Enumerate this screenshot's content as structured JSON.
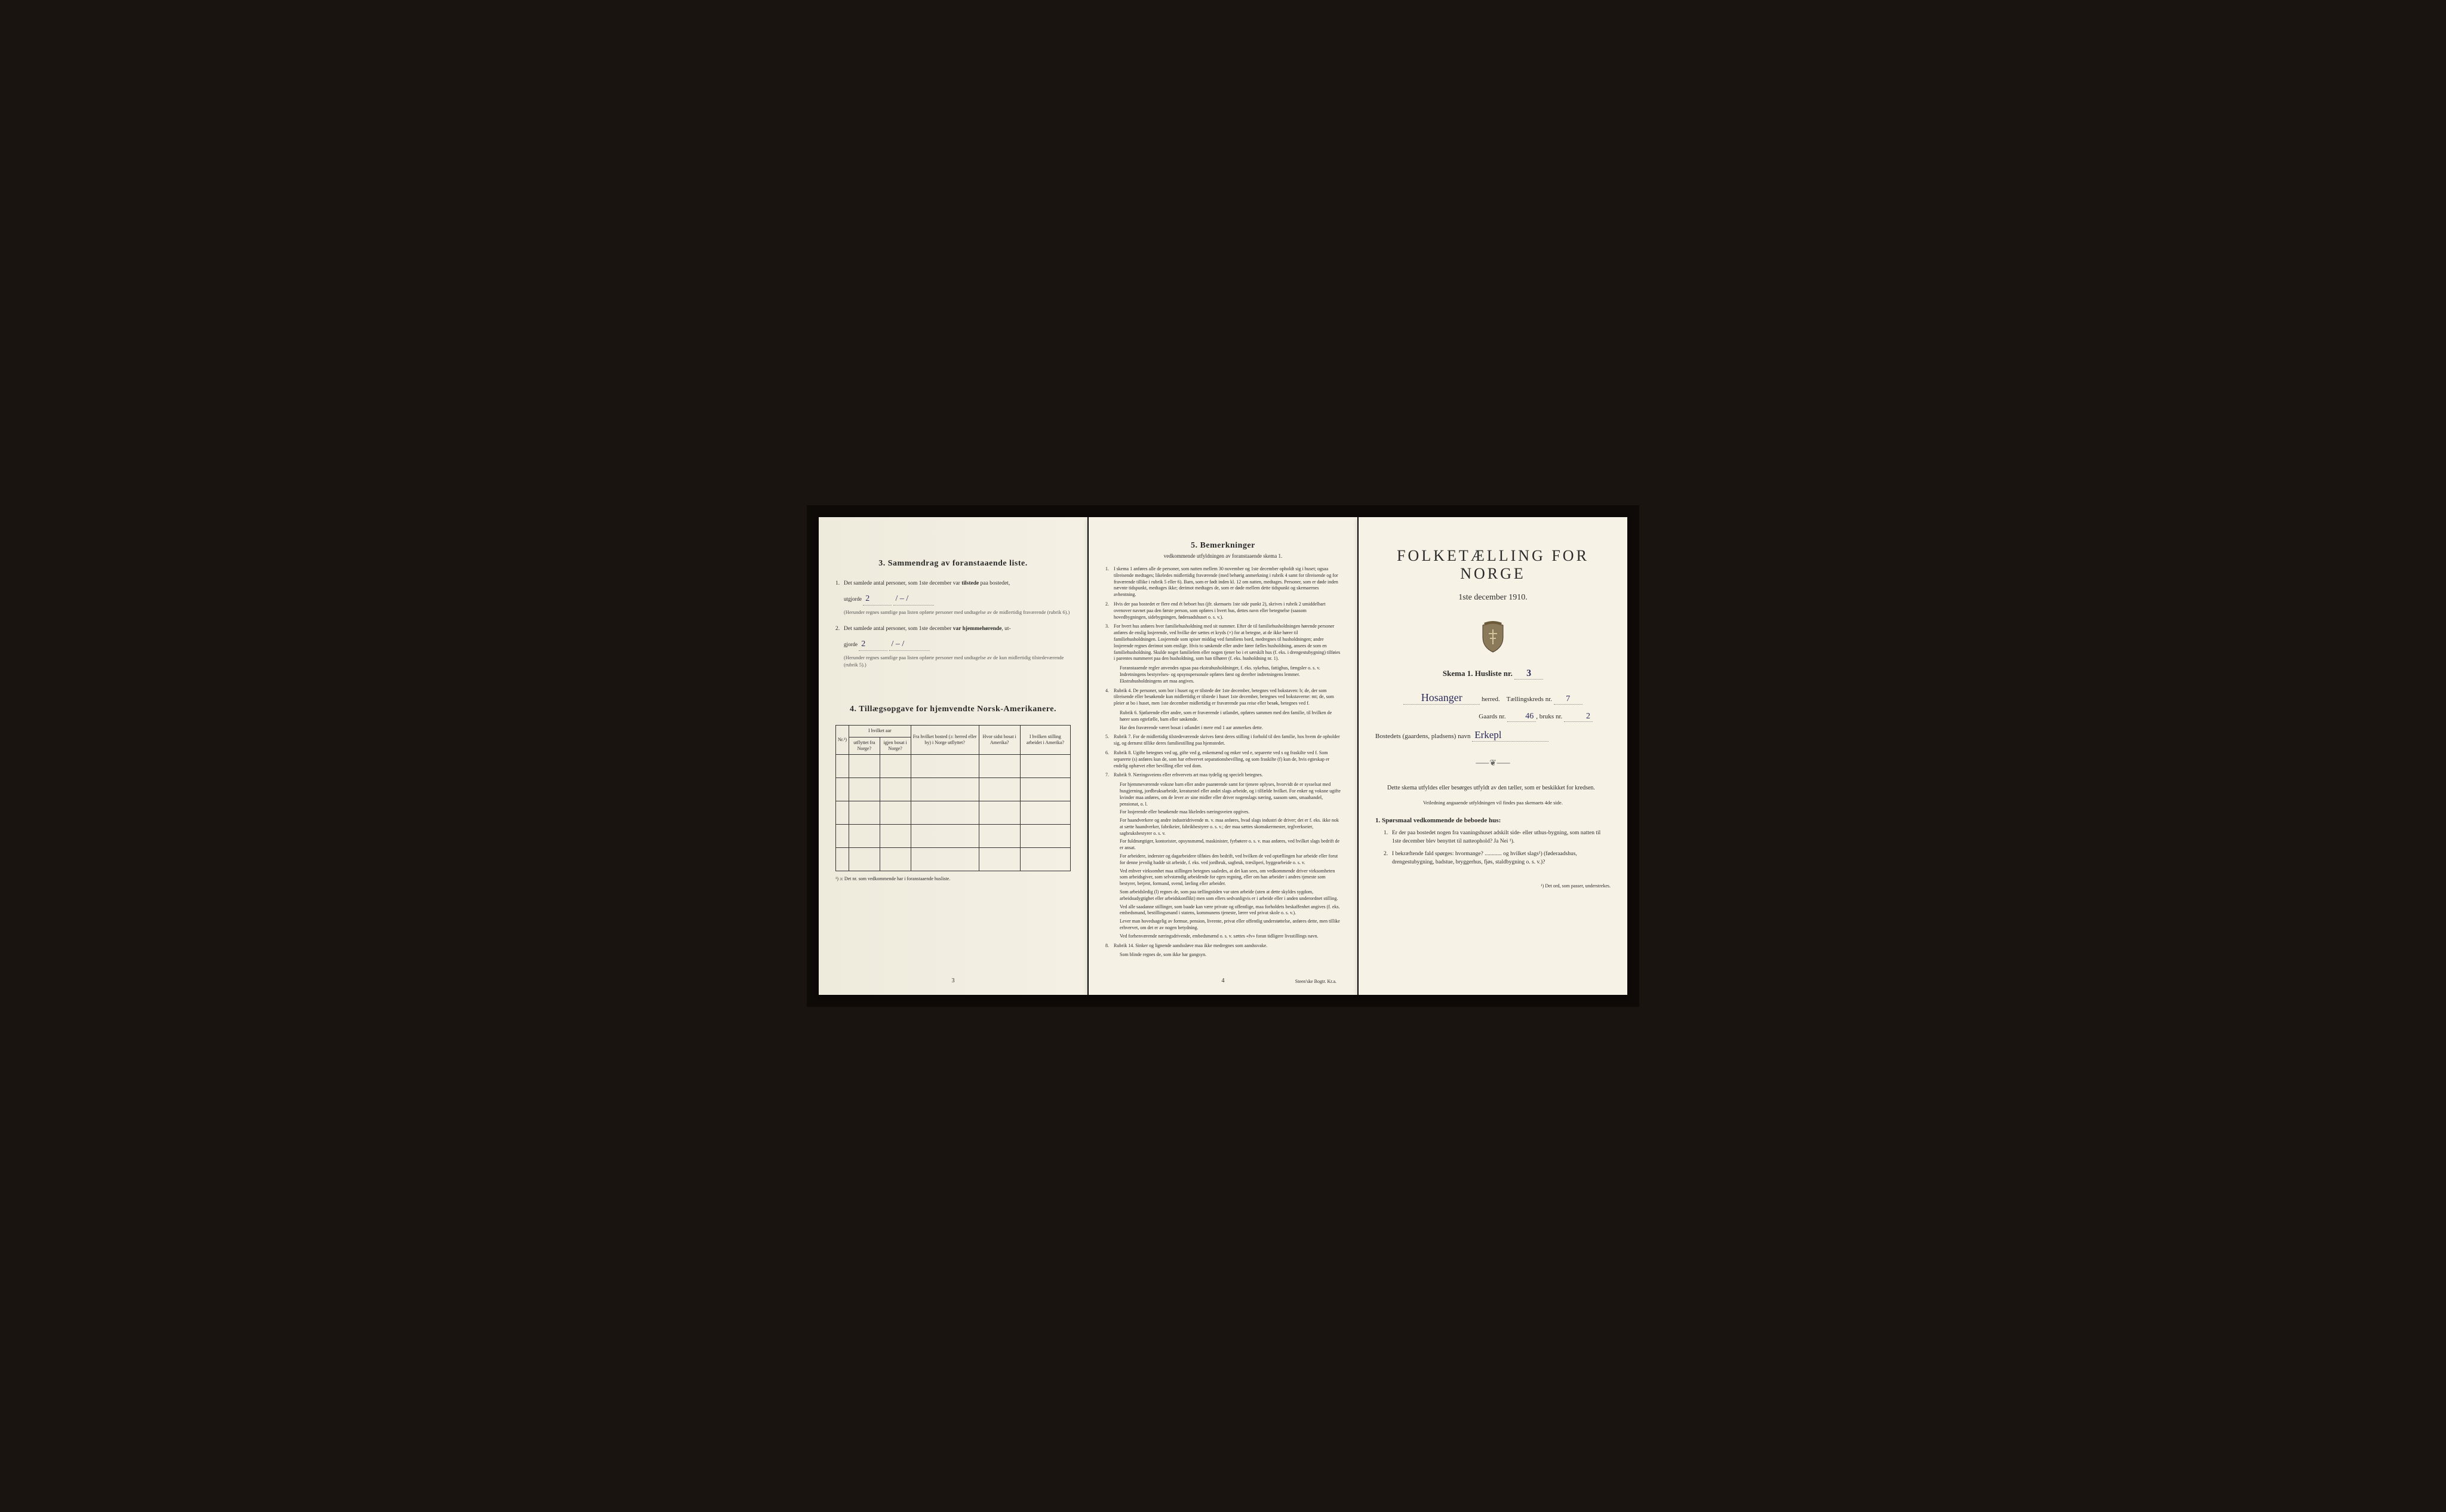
{
  "page1": {
    "section3_heading": "3.  Sammendrag av foranstaaende liste.",
    "item1_prefix": "1.",
    "item1_text_a": "Det samlede antal personer, som 1ste december var ",
    "item1_bold": "tilstede",
    "item1_text_b": " paa bostedet,",
    "item1_line2a": "utgjorde ",
    "hw1": "2",
    "hw1b": "/ – /",
    "item1_paren": "(Herunder regnes samtlige paa listen opførte personer med undtagelse av de midlertidig fraværende (rubrik 6).)",
    "item2_prefix": "2.",
    "item2_text_a": "Det samlede antal personer, som 1ste december ",
    "item2_bold": "var hjemmehørende",
    "item2_text_b": ", ut-",
    "item2_line2a": "gjorde ",
    "hw2": "2",
    "hw2b": "/ – /",
    "item2_paren": "(Herunder regnes samtlige paa listen opførte personer med undtagelse av de kun midlertidig tilstedeværende (rubrik 5).)",
    "section4_heading": "4.  Tillægsopgave for hjemvendte Norsk-Amerikanere.",
    "table_headers": {
      "nr": "Nr.¹)",
      "hvilket_aar": "I hvilket aar",
      "utflyttet": "utflyttet fra Norge?",
      "igjen": "igjen bosat i Norge?",
      "fra_bosted": "Fra hvilket bosted (ɔ: herred eller by) i Norge utflyttet?",
      "hvor_sidst": "Hvor sidst bosat i Amerika?",
      "hvilken_stilling": "I hvilken stilling arbeidet i Amerika?"
    },
    "footnote4": "¹) ɔ: Det nr. som vedkommende har i foranstaaende husliste.",
    "page_num": "3"
  },
  "page2": {
    "heading": "5.  Bemerkninger",
    "subhead": "vedkommende utfyldningen av foranstaaende skema 1.",
    "items": [
      {
        "n": "1.",
        "t": "I skema 1 anføres alle de personer, som natten mellem 30 november og 1ste december opholdt sig i huset; ogsaa tilreisende medtages; likeledes midlertidig fraværende (med behørig anmerkning i rubrik 4 samt for tilreisende og for fraværende tillike i rubrik 5 eller 6). Barn, som er født inden kl. 12 om natten, medtages. Personer, som er døde inden nævnte tidspunkt, medtages ikke; derimot medtages de, som er døde mellem dette tidspunkt og skemaernes avhentning."
      },
      {
        "n": "2.",
        "t": "Hvis der paa bostedet er flere end ét beboet hus (jfr. skemaets 1ste side punkt 2), skrives i rubrik 2 umiddelbart ovenover navnet paa den første person, som opføres i hvert hus, dettes navn eller betegnelse (saasom hovedbygningen, sidebygningen, føderaadshuset o. s. v.)."
      },
      {
        "n": "3.",
        "t": "For hvert hus anføres hver familiehusholdning med sit nummer. Efter de til familiehusholdningen hørende personer anføres de enslig losjerende, ved hvilke der sættes et kryds (×) for at betegne, at de ikke hører til familiehusholdningen. Losjerende som spiser middag ved familiens bord, medregnes til husholdningen; andre losjerende regnes derimot som enslige. Hvis to søskende eller andre fører fælles husholdning, ansees de som en familiehusholdning. Skulde noget familielem eller nogen tjener bo i et særskilt hus (f. eks. i drengestubygning) tilføies i parentes nummeret paa den husholdning, som han tilhører (f. eks. husholdning nr. 1)."
      },
      {
        "n": "",
        "t": "Foranstaaende regler anvendes ogsaa paa ekstrahusholdninger, f. eks. sykehus, fattighus, fængsler o. s. v. Indretningens bestyrelses- og opsynspersonale opføres først og derefter indretningens lemmer. Ekstrahusholdningens art maa angives."
      },
      {
        "n": "4.",
        "t": "Rubrik 4. De personer, som bor i huset og er tilstede der 1ste december, betegnes ved bokstaven: b; de, der som tilreisende eller besøkende kun midlertidig er tilstede i huset 1ste december, betegnes ved bokstaverne: mt; de, som pleier at bo i huset, men 1ste december midlertidig er fraværende paa reise eller besøk, betegnes ved f."
      },
      {
        "n": "",
        "t": "Rubrik 6. Sjøfarende eller andre, som er fraværende i utlandet, opføres sammen med den familie, til hvilken de hører som egtefælle, barn eller søskende."
      },
      {
        "n": "",
        "t": "Har den fraværende været bosat i utlandet i mere end 1 aar anmerkes dette."
      },
      {
        "n": "5.",
        "t": "Rubrik 7. For de midlertidig tilstedeværende skrives først deres stilling i forhold til den familie, hos hvem de opholder sig, og dernæst tillike deres familiestilling paa hjemstedet."
      },
      {
        "n": "6.",
        "t": "Rubrik 8. Ugifte betegnes ved ug, gifte ved g, enkemænd og enker ved e, separerte ved s og fraskilte ved f. Som separerte (s) anføres kun de, som har erhvervet separationsbevilling, og som fraskilte (f) kun de, hvis egteskap er endelig ophævet efter bevilling eller ved dom."
      },
      {
        "n": "7.",
        "t": "Rubrik 9. Næringsveiens eller erhvervets art maa tydelig og specielt betegnes."
      },
      {
        "n": "",
        "t": "For hjemmeværende voksne barn eller andre paarørende samt for tjenere oplyses, hvorvidt de er sysselsat med husgjerning, jordbruksarbeide, kreaturstel eller andet slags arbeide, og i tilfælde hvilket. For enker og voksne ugifte kvinder maa anføres, om de lever av sine midler eller driver nogenslags næring, saasom søm, smaahandel, pensionat, o. l."
      },
      {
        "n": "",
        "t": "For losjerende eller besøkende maa likeledes næringsveien opgives."
      },
      {
        "n": "",
        "t": "For haandverkere og andre industridrivende m. v. maa anføres, hvad slags industri de driver; det er f. eks. ikke nok at sætte haandverker, fabrikeier, fabrikbestyrer o. s. v.; der maa sættes skomakermester, teglverkseier, sagbruksbestyrer o. s. v."
      },
      {
        "n": "",
        "t": "For fuldmægtiger, kontorister, opsynsmænd, maskinister, fyrbøtere o. s. v. maa anføres, ved hvilket slags bedrift de er ansat."
      },
      {
        "n": "",
        "t": "For arbeidere, inderster og dagarbeidere tilføies den bedrift, ved hvilken de ved optællingen har arbeide eller forut for denne jevnlig hadde sit arbeide, f. eks. ved jordbruk, sagbruk, træsliperi, byggearbeide o. s. v."
      },
      {
        "n": "",
        "t": "Ved enhver virksomhet maa stillingen betegnes saaledes, at det kan sees, om vedkommende driver virksomheten som arbeidsgiver, som selvstændig arbeidende for egen regning, eller om han arbeider i andres tjeneste som bestyrer, betjent, formand, svend, lærling eller arbeider."
      },
      {
        "n": "",
        "t": "Som arbeidsledig (l) regnes de, som paa tællingstiden var uten arbeide (uten at dette skyldes sygdom, arbeidsudygtighet eller arbeidskonflikt) men som ellers sedvanligvis er i arbeide eller i anden underordnet stilling."
      },
      {
        "n": "",
        "t": "Ved alle saadanne stillinger, som baade kan være private og offentlige, maa forholdets beskaffenhet angives (f. eks. embedsmand, bestillingsmand i statens, kommunens tjeneste, lærer ved privat skole o. s. v.)."
      },
      {
        "n": "",
        "t": "Lever man hovedsagelig av formue, pension, livrente, privat eller offentlig understøttelse, anføres dette, men tillike erhvervet, om det er av nogen betydning."
      },
      {
        "n": "",
        "t": "Ved forhenværende næringsdrivende, embedsmænd o. s. v. sættes «fv» foran tidligere livsstillings navn."
      },
      {
        "n": "8.",
        "t": "Rubrik 14. Sinker og lignende aandssløve maa ikke medregnes som aandssvake."
      },
      {
        "n": "",
        "t": "Som blinde regnes de, som ikke har gangsyn."
      }
    ],
    "page_num": "4",
    "imprint": "Steen'ske Bogtr.  Kr.a."
  },
  "page3": {
    "title": "FOLKETÆLLING FOR NORGE",
    "subtitle": "1ste december 1910.",
    "skema_line_a": "Skema 1.  Husliste nr.",
    "skema_nr": "3",
    "herred_hw": "Hosanger",
    "herred_label": "herred.",
    "kreds_label": "Tællingskreds nr.",
    "kreds_nr": "7",
    "gaards_label": "Gaards nr.",
    "gaards_nr": "46",
    "bruks_label": "bruks nr.",
    "bruks_nr": "2",
    "bosted_label": "Bostedets (gaardens, pladsens) navn",
    "bosted_hw": "Erkepl",
    "instruct1": "Dette skema utfyldes eller besørges utfyldt av den tæller, som er beskikket for kredsen.",
    "instruct2": "Veiledning angaaende utfyldningen vil findes paa skemaets 4de side.",
    "spm_h": "1. Spørsmaal vedkommende de beboede hus:",
    "spm1_n": "1.",
    "spm1_t": "Er der paa bostedet nogen fra vaaningshuset adskilt side- eller uthus-bygning, som natten til 1ste december blev benyttet til natteophold?  Ja  Nei ¹).",
    "spm2_n": "2.",
    "spm2_t": "I bekræftende fald spørges: hvormange? ............ og hvilket slags¹) (føderaadshus, drengestubygning, badstue, bryggerhus, fjøs, staldbygning o. s. v.)?",
    "bottom_note": "¹) Det ord, som passer, understrekes."
  }
}
